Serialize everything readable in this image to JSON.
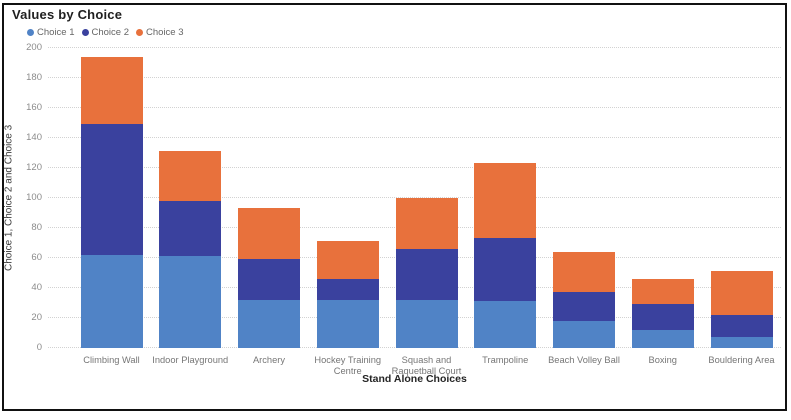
{
  "title": "Values by Choice",
  "chart_data": {
    "type": "bar",
    "stacked": true,
    "title": "Values by Choice",
    "xlabel": "Stand Alone Choices",
    "ylabel": "Choice 1, Choice 2 and Choice 3",
    "ylim": [
      0,
      200
    ],
    "ytick_step": 20,
    "grid": true,
    "legend_position": "top-left",
    "categories": [
      "Climbing Wall",
      "Indoor Playground",
      "Archery",
      "Hockey Training Centre",
      "Squash and Raquetball Court",
      "Trampoline",
      "Beach Volley Ball",
      "Boxing",
      "Bouldering Area"
    ],
    "tick_labels": [
      "Climbing Wall",
      "Indoor Playground",
      "Archery",
      "Hockey Training\nCentre",
      "Squash and\nRaquetball Court",
      "Trampoline",
      "Beach Volley Ball",
      "Boxing",
      "Bouldering Area"
    ],
    "series": [
      {
        "name": "Choice 1",
        "color": "#5083C6",
        "values": [
          62,
          61,
          32,
          32,
          32,
          31,
          18,
          12,
          7
        ]
      },
      {
        "name": "Choice 2",
        "color": "#3A419E",
        "values": [
          87,
          37,
          27,
          14,
          34,
          42,
          19,
          17,
          15
        ]
      },
      {
        "name": "Choice 3",
        "color": "#E8713C",
        "values": [
          45,
          33,
          34,
          25,
          34,
          50,
          27,
          17,
          29
        ]
      }
    ]
  },
  "colors": {
    "series_choice1": "#5083C6",
    "series_choice2": "#3A419E",
    "series_choice3": "#E8713C",
    "gridline": "#d2d2d2",
    "tick_text": "#8c8c8c",
    "axis_title_text": "#3b3b3b",
    "title_text": "#1f1f1f",
    "legend_text": "#666666",
    "border": "#111111"
  }
}
